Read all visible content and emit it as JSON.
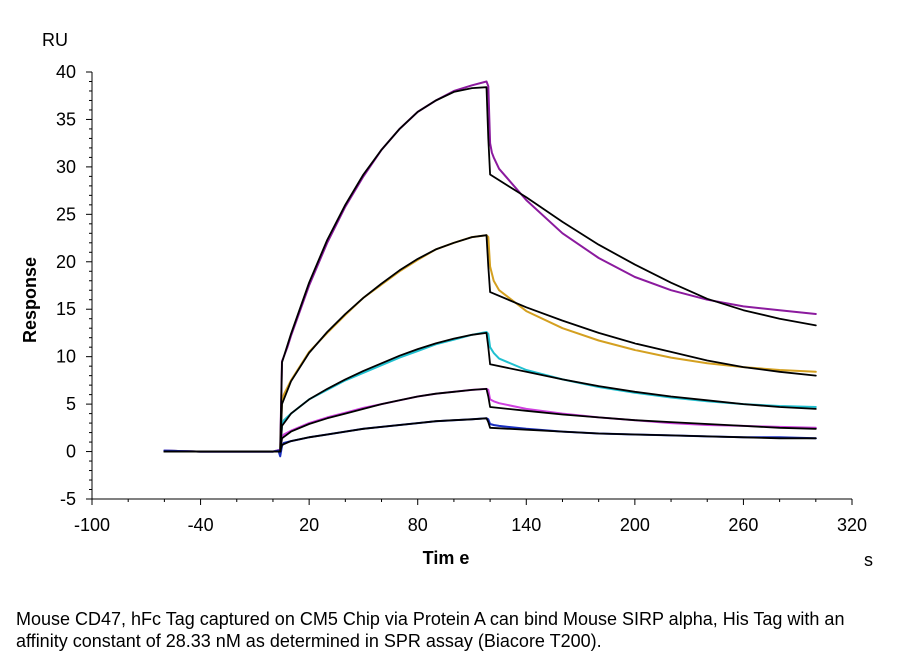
{
  "chart_data": {
    "type": "line",
    "title": "",
    "xlabel": "Tim e",
    "ylabel": "Response",
    "x_unit": "s",
    "y_unit": "RU",
    "xlim": [
      -100,
      320
    ],
    "ylim": [
      -5,
      40
    ],
    "x_ticks": [
      -100,
      -40,
      20,
      80,
      140,
      200,
      260,
      320
    ],
    "y_ticks": [
      -5,
      0,
      5,
      10,
      15,
      20,
      25,
      30,
      35,
      40
    ],
    "grid": false,
    "legend": "none",
    "series": [
      {
        "color": "#8B1A9E",
        "role": "measured",
        "x": [
          -60,
          -40,
          -20,
          0,
          4,
          5,
          6,
          8,
          10,
          20,
          30,
          40,
          50,
          60,
          70,
          80,
          90,
          100,
          110,
          118,
          119,
          120,
          121,
          122,
          125,
          140,
          160,
          180,
          200,
          220,
          240,
          260,
          280,
          300
        ],
        "y": [
          0.1,
          0,
          0,
          0,
          0.2,
          9.5,
          10,
          11,
          12.2,
          17.5,
          22,
          25.8,
          29,
          31.8,
          34,
          35.8,
          37,
          38,
          38.6,
          39,
          38.5,
          32.5,
          31.5,
          31,
          29.8,
          26.5,
          23,
          20.4,
          18.4,
          17,
          16,
          15.3,
          14.9,
          14.5
        ]
      },
      {
        "color": "#D4A020",
        "role": "measured",
        "x": [
          -60,
          -40,
          -20,
          0,
          4,
          5,
          6,
          10,
          20,
          30,
          40,
          50,
          60,
          70,
          80,
          90,
          100,
          110,
          118,
          119,
          120,
          122,
          125,
          140,
          160,
          180,
          200,
          220,
          240,
          260,
          280,
          300
        ],
        "y": [
          0.1,
          0,
          0,
          0,
          0.2,
          5.3,
          6,
          7.5,
          10.5,
          12.5,
          14.4,
          16.2,
          17.6,
          19,
          20.2,
          21.3,
          22,
          22.6,
          22.8,
          22.6,
          19.5,
          18,
          17,
          14.8,
          13,
          11.7,
          10.7,
          9.9,
          9.3,
          8.9,
          8.6,
          8.4
        ]
      },
      {
        "color": "#20C0D0",
        "role": "measured",
        "x": [
          -60,
          -40,
          -20,
          0,
          4,
          5,
          6,
          10,
          20,
          30,
          40,
          50,
          60,
          70,
          80,
          90,
          100,
          110,
          118,
          119,
          120,
          122,
          125,
          140,
          160,
          180,
          200,
          220,
          240,
          260,
          280,
          300
        ],
        "y": [
          0.1,
          0,
          0,
          0,
          0.2,
          2.8,
          3.3,
          4,
          5.5,
          6.5,
          7.5,
          8.3,
          9.1,
          9.9,
          10.6,
          11.3,
          11.8,
          12.3,
          12.6,
          12.4,
          11,
          10.4,
          9.8,
          8.6,
          7.6,
          6.8,
          6.2,
          5.7,
          5.3,
          5,
          4.8,
          4.7
        ]
      },
      {
        "color": "#D040E0",
        "role": "measured",
        "x": [
          -60,
          -40,
          -20,
          0,
          4,
          5,
          6,
          10,
          20,
          30,
          40,
          50,
          60,
          70,
          80,
          90,
          100,
          110,
          118,
          119,
          120,
          122,
          125,
          140,
          160,
          180,
          200,
          220,
          240,
          260,
          280,
          300
        ],
        "y": [
          0.1,
          0,
          0,
          0,
          0.2,
          1.5,
          1.8,
          2.2,
          3,
          3.6,
          4.1,
          4.6,
          5,
          5.4,
          5.8,
          6.1,
          6.3,
          6.5,
          6.6,
          6.5,
          5.5,
          5.3,
          5.1,
          4.5,
          4,
          3.6,
          3.3,
          3,
          2.8,
          2.7,
          2.6,
          2.5
        ]
      },
      {
        "color": "#1A2FC0",
        "role": "measured",
        "x": [
          -60,
          -40,
          -20,
          0,
          3,
          4,
          5,
          6,
          10,
          20,
          30,
          40,
          50,
          60,
          70,
          80,
          90,
          100,
          110,
          118,
          119,
          120,
          122,
          125,
          140,
          160,
          180,
          200,
          220,
          240,
          260,
          280,
          300
        ],
        "y": [
          0.1,
          0,
          0,
          0,
          0.1,
          -0.5,
          0.6,
          0.9,
          1.1,
          1.5,
          1.8,
          2.1,
          2.4,
          2.6,
          2.8,
          3,
          3.2,
          3.3,
          3.4,
          3.5,
          3.4,
          2.9,
          2.8,
          2.7,
          2.4,
          2.1,
          1.9,
          1.8,
          1.7,
          1.6,
          1.5,
          1.5,
          1.4
        ]
      },
      {
        "color": "#000000",
        "role": "fit",
        "x": [
          -60,
          0,
          4,
          5,
          10,
          20,
          30,
          40,
          50,
          60,
          70,
          80,
          90,
          100,
          110,
          118,
          119,
          120,
          140,
          160,
          180,
          200,
          220,
          240,
          260,
          280,
          300
        ],
        "y": [
          0,
          0,
          0,
          9.4,
          12.4,
          17.8,
          22.3,
          26,
          29.2,
          31.8,
          34,
          35.8,
          37,
          37.9,
          38.3,
          38.4,
          33,
          29.2,
          26.8,
          24.2,
          21.8,
          19.7,
          17.8,
          16.1,
          14.9,
          14,
          13.3
        ]
      },
      {
        "color": "#000000",
        "role": "fit",
        "x": [
          -60,
          0,
          4,
          5,
          10,
          20,
          30,
          40,
          50,
          60,
          70,
          80,
          90,
          100,
          110,
          118,
          119,
          120,
          140,
          160,
          180,
          200,
          220,
          240,
          260,
          280,
          300
        ],
        "y": [
          0,
          0,
          0,
          5,
          7.4,
          10.4,
          12.6,
          14.5,
          16.2,
          17.7,
          19.1,
          20.3,
          21.3,
          22,
          22.6,
          22.8,
          19.5,
          16.8,
          15.2,
          13.8,
          12.5,
          11.4,
          10.5,
          9.6,
          8.9,
          8.4,
          8
        ]
      },
      {
        "color": "#000000",
        "role": "fit",
        "x": [
          -60,
          0,
          4,
          5,
          10,
          20,
          30,
          40,
          50,
          60,
          70,
          80,
          90,
          100,
          110,
          118,
          119,
          120,
          140,
          160,
          180,
          200,
          220,
          240,
          260,
          280,
          300
        ],
        "y": [
          0,
          0,
          0,
          2.7,
          4,
          5.5,
          6.6,
          7.6,
          8.5,
          9.3,
          10.1,
          10.8,
          11.4,
          11.9,
          12.3,
          12.5,
          11,
          9.2,
          8.4,
          7.6,
          6.9,
          6.3,
          5.8,
          5.4,
          5,
          4.7,
          4.5
        ]
      },
      {
        "color": "#000000",
        "role": "fit",
        "x": [
          -60,
          0,
          4,
          5,
          10,
          20,
          30,
          40,
          50,
          60,
          70,
          80,
          90,
          100,
          110,
          118,
          119,
          120,
          140,
          160,
          180,
          200,
          220,
          240,
          260,
          280,
          300
        ],
        "y": [
          0,
          0,
          0,
          1.4,
          2.1,
          2.9,
          3.5,
          4,
          4.5,
          5,
          5.4,
          5.8,
          6.1,
          6.3,
          6.5,
          6.6,
          5.8,
          4.7,
          4.3,
          3.9,
          3.6,
          3.3,
          3.1,
          2.9,
          2.7,
          2.5,
          2.4
        ]
      },
      {
        "color": "#000000",
        "role": "fit",
        "x": [
          -60,
          0,
          4,
          5,
          10,
          20,
          30,
          40,
          50,
          60,
          70,
          80,
          90,
          100,
          110,
          118,
          119,
          120,
          140,
          160,
          180,
          200,
          220,
          240,
          260,
          280,
          300
        ],
        "y": [
          0,
          0,
          0,
          0.7,
          1.1,
          1.5,
          1.8,
          2.1,
          2.4,
          2.6,
          2.8,
          3,
          3.2,
          3.3,
          3.4,
          3.5,
          3.1,
          2.5,
          2.3,
          2.1,
          1.9,
          1.8,
          1.7,
          1.6,
          1.5,
          1.4,
          1.4
        ]
      }
    ]
  },
  "caption": "Mouse CD47, hFc Tag captured on CM5 Chip via Protein A can bind Mouse SIRP alpha, His Tag with an affinity constant of 28.33 nM as determined in SPR assay (Biacore T200)."
}
